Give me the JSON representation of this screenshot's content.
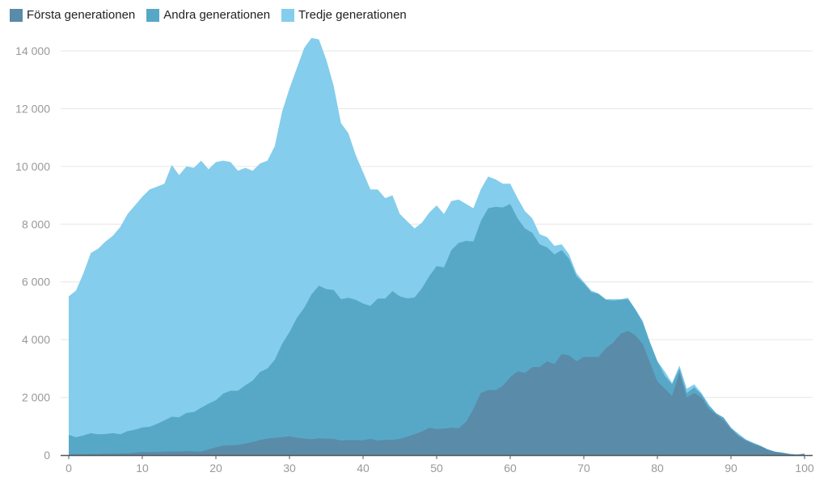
{
  "chart_data": {
    "type": "area",
    "title": "",
    "xlabel": "",
    "ylabel": "",
    "xlim": [
      0,
      100
    ],
    "ylim": [
      0,
      14000
    ],
    "grid": true,
    "legend_position": "top-left",
    "x_ticks": [
      "0",
      "10",
      "20",
      "30",
      "40",
      "50",
      "60",
      "70",
      "80",
      "90",
      "100"
    ],
    "y_ticks": [
      "0",
      "2 000",
      "4 000",
      "6 000",
      "8 000",
      "10 000",
      "12 000",
      "14 000"
    ],
    "x": [
      0,
      1,
      2,
      3,
      4,
      5,
      6,
      7,
      8,
      9,
      10,
      11,
      12,
      13,
      14,
      15,
      16,
      17,
      18,
      19,
      20,
      21,
      22,
      23,
      24,
      25,
      26,
      27,
      28,
      29,
      30,
      31,
      32,
      33,
      34,
      35,
      36,
      37,
      38,
      39,
      40,
      41,
      42,
      43,
      44,
      45,
      46,
      47,
      48,
      49,
      50,
      51,
      52,
      53,
      54,
      55,
      56,
      57,
      58,
      59,
      60,
      61,
      62,
      63,
      64,
      65,
      66,
      67,
      68,
      69,
      70,
      71,
      72,
      73,
      74,
      75,
      76,
      77,
      78,
      79,
      80,
      81,
      82,
      83,
      84,
      85,
      86,
      87,
      88,
      89,
      90,
      91,
      92,
      93,
      94,
      95,
      96,
      97,
      98,
      99,
      100
    ],
    "series": [
      {
        "name": "Tredje generationen",
        "color": "#84cdec",
        "values": [
          5500,
          5700,
          6300,
          7000,
          7150,
          7400,
          7600,
          7900,
          8350,
          8650,
          8950,
          9200,
          9300,
          9400,
          10050,
          9700,
          10000,
          9950,
          10200,
          9900,
          10150,
          10200,
          10150,
          9850,
          9950,
          9850,
          10100,
          10200,
          10700,
          11900,
          12700,
          13400,
          14100,
          14450,
          14400,
          13700,
          12800,
          11500,
          11150,
          10400,
          9800,
          9200,
          9200,
          8900,
          9000,
          8350,
          8100,
          7850,
          8050,
          8400,
          8650,
          8350,
          8800,
          8850,
          8700,
          8550,
          9200,
          9650,
          9550,
          9400,
          9400,
          8900,
          8450,
          8200,
          7650,
          7550,
          7250,
          7300,
          6950,
          6300,
          6000,
          5700,
          5600,
          5400,
          5400,
          5400,
          5450,
          5050,
          4650,
          3900,
          3250,
          2900,
          2500,
          3100,
          2300,
          2450,
          2150,
          1750,
          1450,
          1300,
          950,
          750,
          550,
          430,
          330,
          200,
          120,
          90,
          40,
          20,
          50
        ]
      },
      {
        "name": "Andra generationen",
        "color": "#57a8c7",
        "values": [
          700,
          620,
          680,
          760,
          720,
          730,
          760,
          720,
          830,
          880,
          960,
          980,
          1080,
          1200,
          1330,
          1310,
          1460,
          1490,
          1640,
          1780,
          1900,
          2130,
          2230,
          2230,
          2420,
          2580,
          2880,
          3000,
          3300,
          3850,
          4260,
          4750,
          5100,
          5570,
          5870,
          5750,
          5720,
          5400,
          5450,
          5380,
          5250,
          5170,
          5420,
          5420,
          5680,
          5500,
          5430,
          5460,
          5780,
          6200,
          6550,
          6500,
          7100,
          7350,
          7420,
          7400,
          8100,
          8550,
          8600,
          8580,
          8700,
          8200,
          7850,
          7700,
          7300,
          7200,
          6950,
          7100,
          6800,
          6200,
          5950,
          5650,
          5580,
          5380,
          5350,
          5380,
          5400,
          5050,
          4600,
          3900,
          3250,
          2750,
          2450,
          3000,
          2150,
          2350,
          2100,
          1700,
          1450,
          1300,
          950,
          700,
          530,
          420,
          320,
          200,
          120,
          80,
          40,
          20,
          50
        ]
      },
      {
        "name": "Första generationen",
        "color": "#5a8ba8",
        "values": [
          20,
          30,
          30,
          40,
          40,
          50,
          50,
          60,
          60,
          80,
          110,
          100,
          110,
          120,
          130,
          120,
          140,
          130,
          120,
          200,
          270,
          330,
          340,
          350,
          400,
          450,
          520,
          570,
          600,
          620,
          650,
          600,
          570,
          550,
          580,
          570,
          560,
          500,
          520,
          520,
          510,
          560,
          500,
          530,
          530,
          560,
          640,
          720,
          820,
          950,
          900,
          920,
          950,
          930,
          1150,
          1600,
          2150,
          2250,
          2250,
          2400,
          2700,
          2900,
          2850,
          3050,
          3050,
          3250,
          3150,
          3500,
          3450,
          3250,
          3400,
          3400,
          3400,
          3700,
          3900,
          4200,
          4300,
          4150,
          3850,
          3200,
          2550,
          2300,
          2050,
          2850,
          2000,
          2150,
          2000,
          1600,
          1400,
          1200,
          900,
          650,
          500,
          380,
          300,
          180,
          110,
          70,
          30,
          10,
          40
        ]
      }
    ]
  },
  "legend": [
    {
      "label": "Första generationen",
      "color": "#5a8ba8"
    },
    {
      "label": "Andra generationen",
      "color": "#57a8c7"
    },
    {
      "label": "Tredje generationen",
      "color": "#84cdec"
    }
  ]
}
